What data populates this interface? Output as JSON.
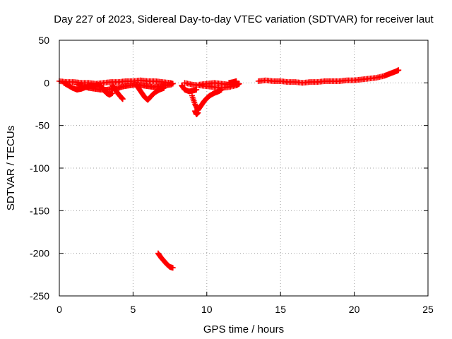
{
  "chart_data": {
    "type": "scatter",
    "title": "Day 227 of 2023, Sidereal Day-to-day VTEC variation (SDTVAR) for receiver laut",
    "xlabel": "GPS time / hours",
    "ylabel": "SDTVAR / TECUs",
    "xlim": [
      0,
      25
    ],
    "ylim": [
      -250,
      50
    ],
    "xticks": [
      "0",
      "5",
      "10",
      "15",
      "20",
      "25"
    ],
    "yticks": [
      "50",
      "0",
      "-50",
      "-100",
      "-150",
      "-200",
      "-250"
    ],
    "grid": true,
    "marker": "plus",
    "color": "#ff0000",
    "series": [
      {
        "tracks": [
          [
            [
              0.0,
              2
            ],
            [
              0.5,
              1
            ],
            [
              1.0,
              1
            ],
            [
              1.5,
              0
            ],
            [
              2.0,
              0
            ],
            [
              2.5,
              -1
            ],
            [
              3.0,
              0
            ],
            [
              3.5,
              1
            ],
            [
              4.0,
              1
            ],
            [
              4.5,
              2
            ],
            [
              5.0,
              2
            ],
            [
              5.5,
              3
            ],
            [
              6.0,
              2
            ],
            [
              6.5,
              2
            ],
            [
              7.0,
              1
            ],
            [
              7.5,
              0
            ],
            [
              7.7,
              -1
            ]
          ],
          [
            [
              0.3,
              0
            ],
            [
              0.6,
              -3
            ],
            [
              0.9,
              -6
            ],
            [
              1.2,
              -8
            ],
            [
              1.5,
              -7
            ],
            [
              1.8,
              -5
            ],
            [
              2.1,
              -4
            ],
            [
              2.4,
              -3
            ],
            [
              2.7,
              -2
            ]
          ],
          [
            [
              1.2,
              -2
            ],
            [
              1.6,
              -4
            ],
            [
              2.0,
              -6
            ],
            [
              2.4,
              -7
            ],
            [
              2.8,
              -8
            ],
            [
              3.2,
              -8
            ],
            [
              3.6,
              -7
            ],
            [
              4.0,
              -6
            ],
            [
              4.4,
              -4
            ],
            [
              4.8,
              -3
            ],
            [
              5.2,
              -2
            ],
            [
              5.6,
              -3
            ],
            [
              6.0,
              -4
            ],
            [
              6.4,
              -5
            ],
            [
              6.8,
              -4
            ],
            [
              7.2,
              -3
            ],
            [
              7.6,
              -2
            ]
          ],
          [
            [
              2.8,
              -3
            ],
            [
              3.0,
              -8
            ],
            [
              3.2,
              -12
            ],
            [
              3.4,
              -14
            ],
            [
              3.6,
              -12
            ]
          ],
          [
            [
              3.6,
              -3
            ],
            [
              3.8,
              -8
            ],
            [
              4.0,
              -13
            ],
            [
              4.2,
              -17
            ],
            [
              4.3,
              -19
            ]
          ],
          [
            [
              5.2,
              -2
            ],
            [
              5.4,
              -7
            ],
            [
              5.6,
              -12
            ],
            [
              5.8,
              -17
            ],
            [
              6.0,
              -20
            ],
            [
              6.2,
              -16
            ],
            [
              6.5,
              -11
            ],
            [
              6.8,
              -8
            ],
            [
              7.1,
              -6
            ]
          ],
          [
            [
              6.7,
              -200
            ],
            [
              6.9,
              -205
            ],
            [
              7.1,
              -209
            ],
            [
              7.3,
              -213
            ],
            [
              7.5,
              -216
            ],
            [
              7.7,
              -217
            ]
          ],
          [
            [
              8.3,
              -3
            ],
            [
              8.5,
              -8
            ],
            [
              8.8,
              -10
            ],
            [
              9.1,
              -9
            ],
            [
              9.3,
              -8
            ]
          ],
          [
            [
              8.5,
              0
            ],
            [
              9.0,
              -2
            ],
            [
              9.5,
              -3
            ],
            [
              10.0,
              -4
            ],
            [
              10.5,
              -5
            ],
            [
              11.0,
              -6
            ],
            [
              11.5,
              -5
            ],
            [
              12.0,
              -3
            ],
            [
              12.2,
              -1
            ]
          ],
          [
            [
              9.0,
              -15
            ],
            [
              9.2,
              -25
            ],
            [
              9.4,
              -32
            ],
            [
              9.6,
              -27
            ],
            [
              9.8,
              -22
            ],
            [
              10.0,
              -18
            ],
            [
              10.2,
              -15
            ],
            [
              10.5,
              -12
            ],
            [
              10.8,
              -10
            ],
            [
              11.0,
              -8
            ]
          ],
          [
            [
              9.2,
              -33
            ],
            [
              9.3,
              -37
            ],
            [
              9.4,
              -35
            ]
          ],
          [
            [
              9.5,
              -2
            ],
            [
              10.0,
              -1
            ],
            [
              10.5,
              0
            ],
            [
              11.0,
              -1
            ],
            [
              11.5,
              -2
            ],
            [
              12.0,
              -3
            ]
          ],
          [
            [
              11.5,
              0
            ],
            [
              11.8,
              1
            ],
            [
              12.0,
              2
            ]
          ],
          [
            [
              13.5,
              2
            ],
            [
              14.0,
              3
            ],
            [
              14.5,
              2
            ],
            [
              15.0,
              2
            ],
            [
              15.5,
              1
            ],
            [
              16.0,
              1
            ],
            [
              16.5,
              0
            ],
            [
              17.0,
              1
            ],
            [
              17.5,
              1
            ],
            [
              18.0,
              2
            ],
            [
              18.5,
              2
            ],
            [
              19.0,
              2
            ],
            [
              19.5,
              3
            ],
            [
              20.0,
              3
            ],
            [
              20.5,
              4
            ],
            [
              21.0,
              5
            ],
            [
              21.5,
              6
            ],
            [
              22.0,
              8
            ],
            [
              22.3,
              10
            ],
            [
              22.6,
              12
            ],
            [
              22.9,
              14
            ],
            [
              23.0,
              15
            ]
          ]
        ]
      }
    ]
  }
}
